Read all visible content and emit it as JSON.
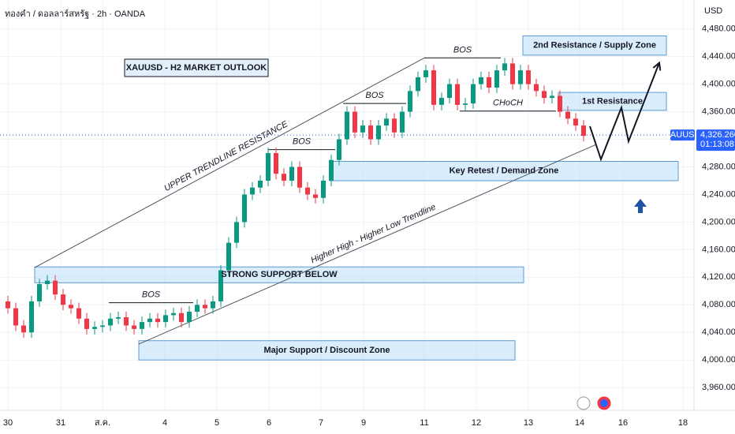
{
  "chart_data": {
    "type": "candlestick",
    "header": "ทองคำ / ดอลลาร์สหรัฐ · 2h · OANDA",
    "title": "XAUUSD - H2 MARKET OUTLOOK",
    "currency": "USD",
    "symbol": "XAUUSD",
    "last_price": {
      "value": 4326.26,
      "label": "4,326.260"
    },
    "countdown": "01:13:08",
    "up_color": "#089981",
    "down_color": "#f23645",
    "grid": true,
    "xlim": [
      -1,
      87
    ],
    "ylim": [
      3927,
      4522
    ],
    "xticks": [
      {
        "value": 0,
        "label": "30"
      },
      {
        "value": 6.7,
        "label": "31"
      },
      {
        "value": 12,
        "label": "ส.ค."
      },
      {
        "value": 19.9,
        "label": "4"
      },
      {
        "value": 26.5,
        "label": "5"
      },
      {
        "value": 33.1,
        "label": "6"
      },
      {
        "value": 39.7,
        "label": "7"
      },
      {
        "value": 45.1,
        "label": "9"
      },
      {
        "value": 52.8,
        "label": "11"
      },
      {
        "value": 59.4,
        "label": "12"
      },
      {
        "value": 66,
        "label": "13"
      },
      {
        "value": 72.5,
        "label": "14"
      },
      {
        "value": 78,
        "label": "16"
      },
      {
        "value": 85.6,
        "label": "18"
      }
    ],
    "yticks": [
      {
        "value": 4480,
        "label": "4,480.000"
      },
      {
        "value": 4440,
        "label": "4,440.000"
      },
      {
        "value": 4400,
        "label": "4,400.000"
      },
      {
        "value": 4360,
        "label": "4,360.000"
      },
      {
        "value": 4320,
        "label": "4,320.000"
      },
      {
        "value": 4280,
        "label": "4,280.000"
      },
      {
        "value": 4240,
        "label": "4,240.000"
      },
      {
        "value": 4200,
        "label": "4,200.000"
      },
      {
        "value": 4160,
        "label": "4,160.000"
      },
      {
        "value": 4120,
        "label": "4,120.000"
      },
      {
        "value": 4080,
        "label": "4,080.000"
      },
      {
        "value": 4040,
        "label": "4,040.000"
      },
      {
        "value": 4000,
        "label": "4,000.000"
      },
      {
        "value": 3960,
        "label": "3,960.000"
      }
    ],
    "x": [
      0,
      1,
      2,
      3,
      4,
      5,
      6,
      7,
      8,
      9,
      10,
      11,
      12,
      13,
      14,
      15,
      16,
      17,
      18,
      19,
      20,
      21,
      22,
      23,
      24,
      25,
      26,
      27,
      28,
      29,
      30,
      31,
      32,
      33,
      34,
      35,
      36,
      37,
      38,
      39,
      40,
      41,
      42,
      43,
      44,
      45,
      46,
      47,
      48,
      49,
      50,
      51,
      52,
      53,
      54,
      55,
      56,
      57,
      58,
      59,
      60,
      61,
      62,
      63,
      64,
      65,
      66,
      67,
      68,
      69,
      70,
      71,
      72,
      73
    ],
    "open": [
      4085,
      4075,
      4050,
      4040,
      4085,
      4110,
      4115,
      4095,
      4080,
      4075,
      4060,
      4045,
      4048,
      4050,
      4060,
      4062,
      4050,
      4045,
      4055,
      4060,
      4055,
      4065,
      4068,
      4055,
      4070,
      4080,
      4075,
      4085,
      4130,
      4170,
      4200,
      4240,
      4250,
      4260,
      4300,
      4270,
      4260,
      4280,
      4250,
      4240,
      4235,
      4260,
      4290,
      4320,
      4360,
      4330,
      4340,
      4320,
      4340,
      4350,
      4330,
      4360,
      4390,
      4410,
      4420,
      4370,
      4380,
      4400,
      4370,
      4372,
      4400,
      4410,
      4395,
      4420,
      4430,
      4400,
      4420,
      4400,
      4390,
      4380,
      4383,
      4360,
      4350,
      4340
    ],
    "high": [
      4093,
      4083,
      4058,
      4093,
      4118,
      4123,
      4123,
      4103,
      4088,
      4083,
      4068,
      4056,
      4058,
      4068,
      4070,
      4070,
      4058,
      4063,
      4068,
      4068,
      4073,
      4076,
      4076,
      4078,
      4088,
      4088,
      4093,
      4138,
      4178,
      4208,
      4248,
      4258,
      4268,
      4308,
      4308,
      4278,
      4288,
      4288,
      4258,
      4248,
      4268,
      4298,
      4328,
      4368,
      4368,
      4348,
      4348,
      4348,
      4358,
      4358,
      4368,
      4398,
      4418,
      4428,
      4428,
      4388,
      4408,
      4408,
      4380,
      4408,
      4418,
      4418,
      4428,
      4438,
      4438,
      4428,
      4428,
      4408,
      4398,
      4391,
      4391,
      4368,
      4358,
      4348
    ],
    "low": [
      4067,
      4042,
      4032,
      4032,
      4077,
      4102,
      4087,
      4072,
      4067,
      4052,
      4037,
      4037,
      4040,
      4042,
      4052,
      4042,
      4037,
      4037,
      4047,
      4047,
      4047,
      4057,
      4047,
      4047,
      4062,
      4067,
      4067,
      4077,
      4122,
      4162,
      4192,
      4232,
      4242,
      4252,
      4262,
      4252,
      4252,
      4242,
      4232,
      4227,
      4227,
      4252,
      4282,
      4312,
      4322,
      4322,
      4312,
      4312,
      4332,
      4322,
      4322,
      4352,
      4382,
      4402,
      4362,
      4362,
      4372,
      4362,
      4362,
      4364,
      4392,
      4387,
      4387,
      4412,
      4392,
      4392,
      4392,
      4382,
      4372,
      4372,
      4352,
      4342,
      4332,
      4317
    ],
    "close": [
      4075,
      4050,
      4040,
      4085,
      4110,
      4115,
      4095,
      4080,
      4075,
      4060,
      4045,
      4048,
      4050,
      4060,
      4062,
      4050,
      4045,
      4055,
      4060,
      4055,
      4065,
      4068,
      4055,
      4070,
      4080,
      4075,
      4085,
      4130,
      4170,
      4200,
      4240,
      4250,
      4260,
      4300,
      4270,
      4260,
      4280,
      4250,
      4240,
      4235,
      4260,
      4290,
      4320,
      4360,
      4330,
      4340,
      4320,
      4340,
      4350,
      4330,
      4360,
      4390,
      4410,
      4420,
      4370,
      4380,
      4400,
      4370,
      4372,
      4400,
      4410,
      4395,
      4420,
      4430,
      4400,
      4420,
      4400,
      4390,
      4380,
      4383,
      4360,
      4350,
      4340,
      4325
    ],
    "zones": [
      {
        "label": "2nd Resistance / Supply Zone",
        "start": 65.3,
        "end": 83.5,
        "low": 4442,
        "high": 4470
      },
      {
        "label": "1st Resistance",
        "start": 69.8,
        "end": 83.5,
        "low": 4362,
        "high": 4388
      },
      {
        "label": "Key Retest / Demand Zone",
        "start": 40.8,
        "end": 85,
        "low": 4260,
        "high": 4288
      },
      {
        "label": "STRONG SUPPORT BELOW",
        "start": 3.4,
        "end": 65.4,
        "low": 4112,
        "high": 4135
      },
      {
        "label": "Major Support / Discount Zone",
        "start": 16.6,
        "end": 64.3,
        "low": 4000,
        "high": 4028
      }
    ],
    "trendlines": [
      {
        "label": "UPPER TRENDLINE RESISTANCE",
        "x": [
          3.4,
          52.8
        ],
        "y": [
          4134,
          4438
        ]
      },
      {
        "label": "Higher High - Higher Low Trendline",
        "x": [
          16.6,
          74.5
        ],
        "y": [
          4023,
          4312
        ]
      }
    ],
    "levels": [
      {
        "label": "BOS",
        "x": [
          12.8,
          23.5
        ],
        "y": 4083
      },
      {
        "label": "BOS",
        "x": [
          33,
          41.5
        ],
        "y": 4305
      },
      {
        "label": "BOS",
        "x": [
          42.5,
          50.5
        ],
        "y": 4372
      },
      {
        "label": "BOS",
        "x": [
          52.8,
          62.5
        ],
        "y": 4438
      },
      {
        "label": "CHoCH",
        "x": [
          57.3,
          69.5
        ],
        "y": 4361
      }
    ],
    "projection": {
      "x": [
        73.8,
        75.2,
        77.8,
        78.7,
        82.6
      ],
      "y": [
        4339,
        4291,
        4366,
        4317,
        4431
      ]
    }
  }
}
